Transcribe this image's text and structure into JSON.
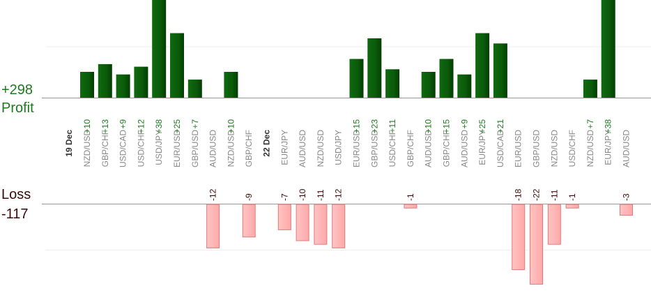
{
  "summary": {
    "profit_total": "+298",
    "profit_label": "Profit",
    "loss_label": "Loss",
    "loss_total": "-117"
  },
  "colors": {
    "profit_bar": "#0a5f0a",
    "profit_bar_dark": "#033d03",
    "profit_text": "#1e7a1e",
    "loss_bar": "#ffb3b3",
    "loss_bar_border": "#e07a7a",
    "loss_text": "#3a0a0a",
    "label_text": "#888888"
  },
  "chart_data": {
    "type": "bar",
    "title": "",
    "xlabel": "",
    "ylabel": "",
    "date_groups": [
      {
        "label": "19 Dec",
        "start_index": 0
      },
      {
        "label": "22 Dec",
        "start_index": 10
      }
    ],
    "categories": [
      "NZD/USD",
      "GBP/CHF",
      "USD/CAD",
      "USD/CHF",
      "USD/JPY",
      "EUR/USD",
      "GBP/USD",
      "AUD/USD",
      "NZD/USD",
      "GBP/CHF",
      "EUR/JPY",
      "AUD/USD",
      "NZD/USD",
      "USD/JPY",
      "EUR/USD",
      "GBP/USD",
      "USD/CHF",
      "GBP/CHF",
      "AUD/USD",
      "GBP/CHF",
      "AUD/USD",
      "EUR/JPY",
      "USD/CAD",
      "EUR/USD",
      "GBP/USD",
      "NZD/USD",
      "USD/CHF",
      "NZD/USD",
      "EUR/JPY",
      "AUD/USD"
    ],
    "profit": [
      10,
      13,
      9,
      12,
      38,
      25,
      7,
      null,
      10,
      null,
      null,
      null,
      null,
      null,
      15,
      23,
      11,
      null,
      10,
      15,
      9,
      25,
      21,
      null,
      null,
      null,
      null,
      7,
      38,
      null
    ],
    "profit_labels": [
      "+10",
      "+13",
      "+9",
      "+12",
      "+38",
      "+25",
      "+7",
      null,
      "+10",
      null,
      null,
      null,
      null,
      null,
      "+15",
      "+23",
      "+11",
      null,
      "+10",
      "+15",
      "+9",
      "+25",
      "+21",
      null,
      null,
      null,
      null,
      "+7",
      "+38",
      null
    ],
    "loss": [
      null,
      null,
      null,
      null,
      null,
      null,
      null,
      -12,
      null,
      -9,
      -7,
      -10,
      -11,
      -12,
      null,
      null,
      null,
      -1,
      null,
      null,
      null,
      null,
      null,
      -18,
      -22,
      -11,
      -1,
      null,
      null,
      -3
    ],
    "loss_labels": [
      null,
      null,
      null,
      null,
      null,
      null,
      null,
      "-12",
      null,
      "-9",
      "-7",
      "-10",
      "-11",
      "-12",
      null,
      null,
      null,
      "-1",
      null,
      null,
      null,
      null,
      null,
      "-18",
      "-22",
      "-11",
      "-1",
      null,
      null,
      "-3"
    ],
    "profit_axis": {
      "min": 0,
      "max": 20,
      "gridline": 10
    },
    "loss_axis": {
      "min": -20,
      "max": 0,
      "gridline": -10
    }
  }
}
